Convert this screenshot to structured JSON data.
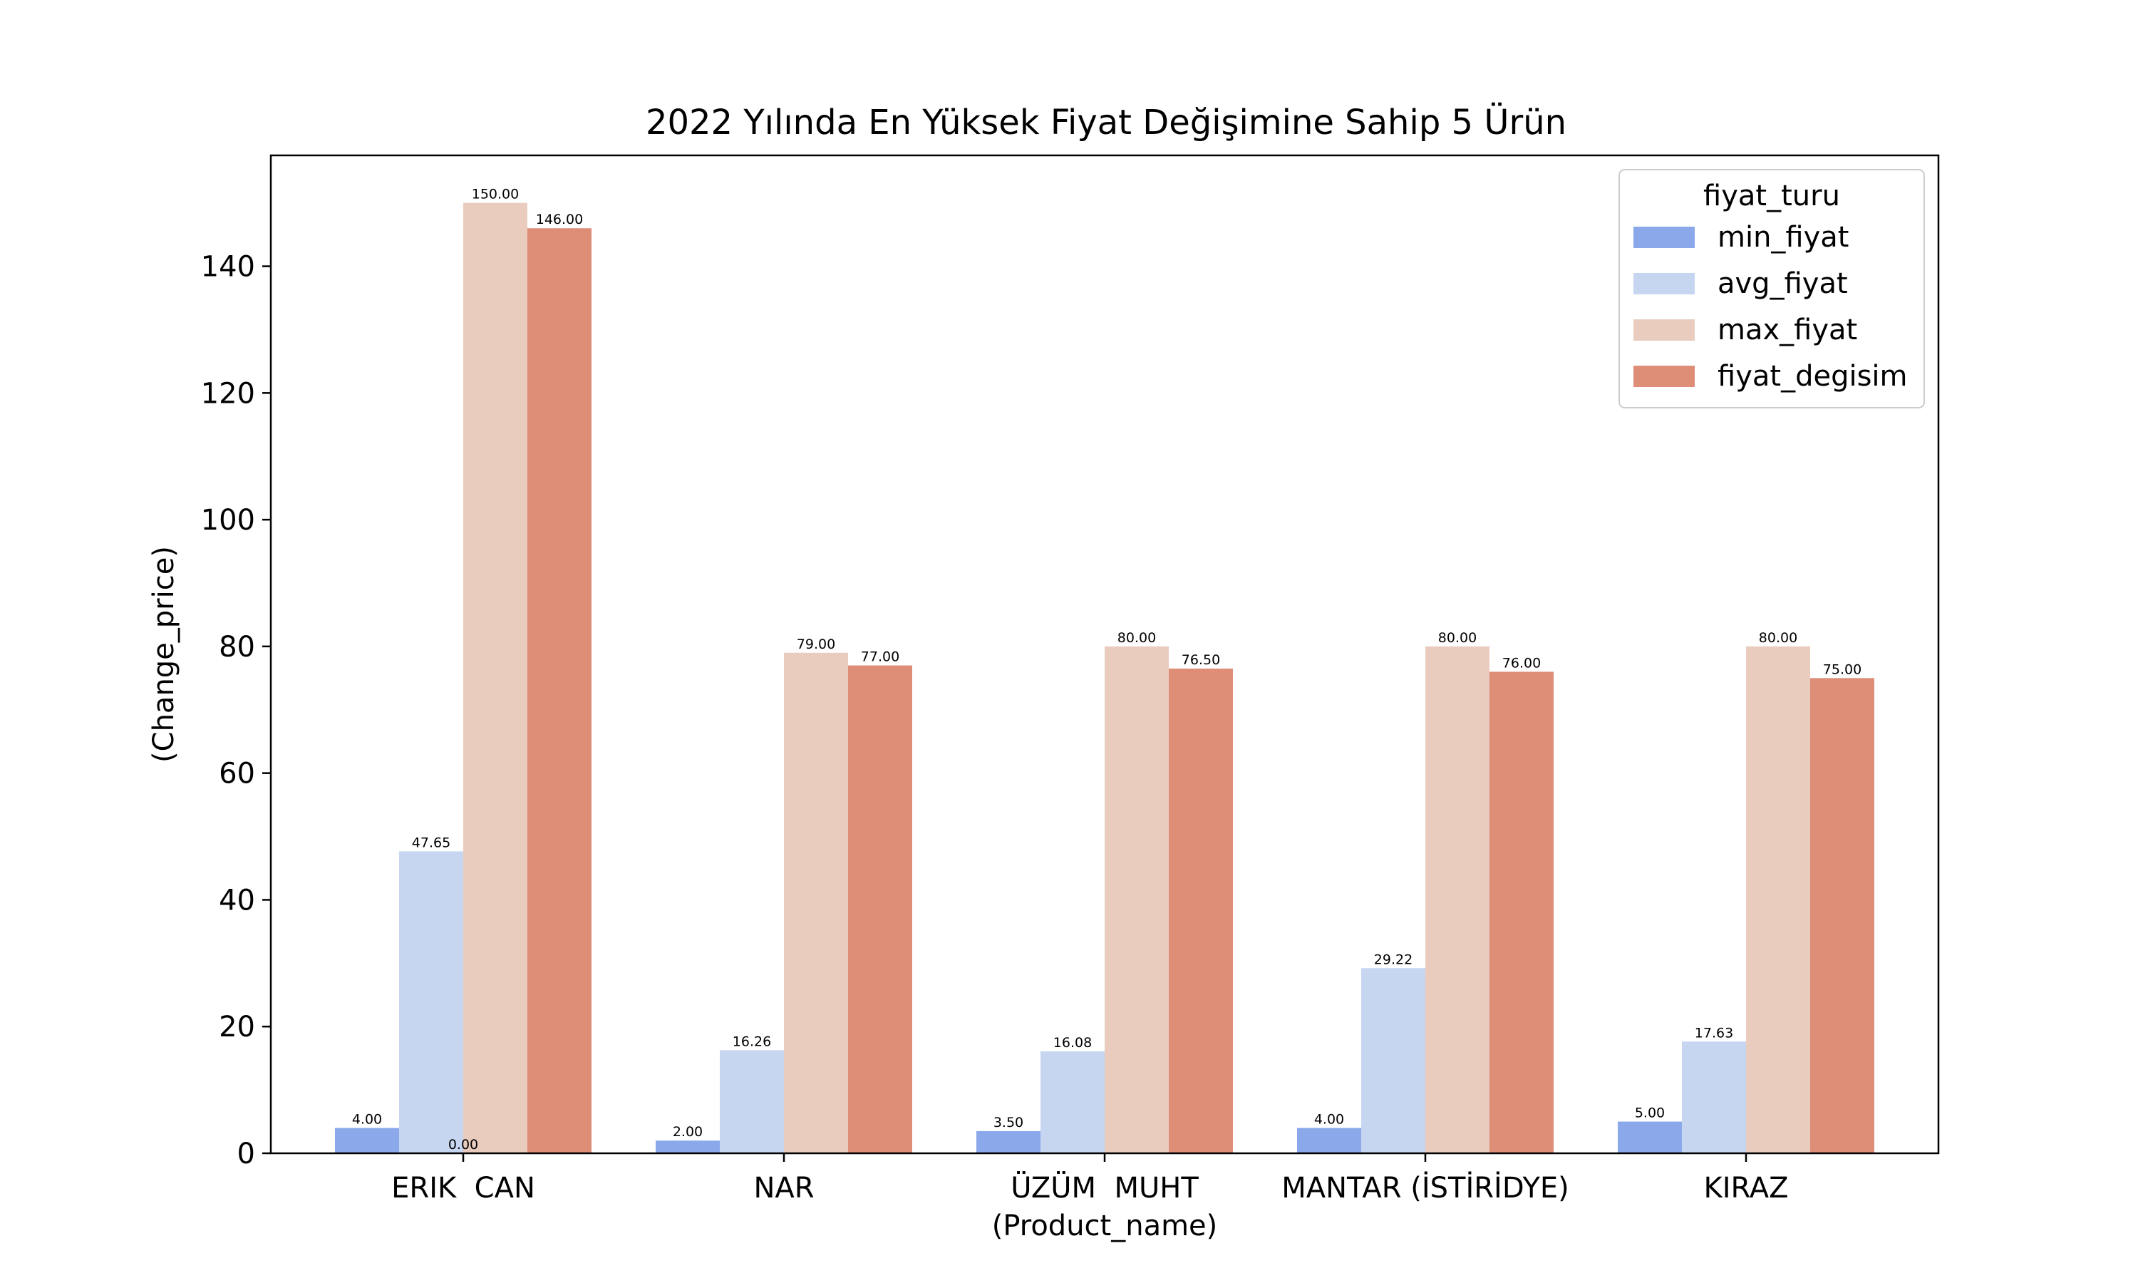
{
  "chart_data": {
    "type": "bar",
    "title": "2022 Yılında En Yüksek Fiyat Değişimine Sahip 5 Ürün",
    "xlabel": "(Product_name)",
    "ylabel": "(Change_price)",
    "ylim": [
      0,
      157.5
    ],
    "yticks": [
      0,
      20,
      40,
      60,
      80,
      100,
      120,
      140
    ],
    "categories": [
      "ERIK  CAN",
      "NAR",
      "ÜZÜM  MUHT",
      "MANTAR (İSTİRİDYE)",
      "KIRAZ"
    ],
    "series": [
      {
        "name": "min_fiyat",
        "color": "#8BA8EB",
        "values": [
          4.0,
          2.0,
          3.5,
          4.0,
          5.0
        ],
        "labels": [
          "4.00",
          "2.00",
          "3.50",
          "4.00",
          "5.00"
        ]
      },
      {
        "name": "avg_fiyat",
        "color": "#C6D5F0",
        "values": [
          47.65,
          16.26,
          16.08,
          29.22,
          17.63
        ],
        "labels": [
          "47.65",
          "16.26",
          "16.08",
          "29.22",
          "17.63"
        ]
      },
      {
        "name": "max_fiyat",
        "color": "#EACCBE",
        "values": [
          150.0,
          79.0,
          80.0,
          80.0,
          80.0
        ],
        "labels": [
          "150.00",
          "79.00",
          "80.00",
          "80.00",
          "80.00"
        ]
      },
      {
        "name": "fiyat_degisim",
        "color": "#DE8D77",
        "values": [
          146.0,
          77.0,
          76.5,
          76.0,
          75.0
        ],
        "labels": [
          "146.00",
          "77.00",
          "76.50",
          "76.00",
          "75.00"
        ]
      }
    ],
    "extra_labels": [
      {
        "text": "0.00",
        "category_index": 0,
        "value": 0
      }
    ],
    "legend": {
      "title": "fiyat_turu",
      "placement": "top-right"
    },
    "grid": false
  }
}
